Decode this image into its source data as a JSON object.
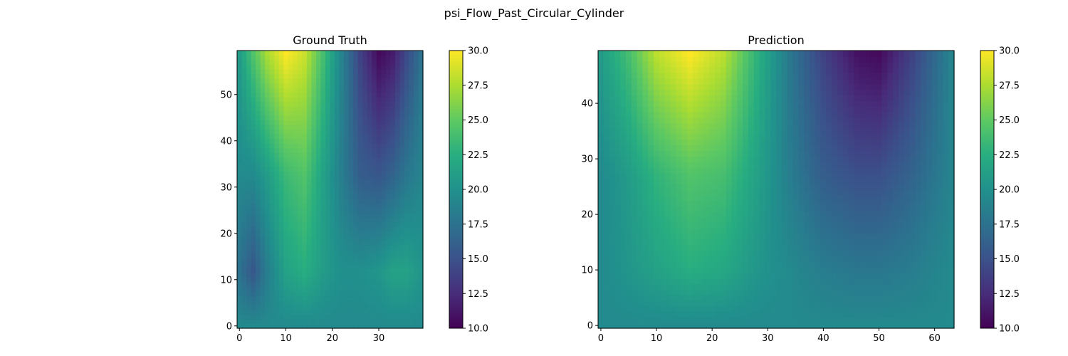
{
  "figure": {
    "title": "psi_Flow_Past_Circular_Cylinder"
  },
  "chart_data": [
    {
      "type": "heatmap",
      "title": "Ground Truth",
      "colormap": "viridis",
      "grid": false,
      "nx": 40,
      "ny": 60,
      "xlim": [
        -0.5,
        39.5
      ],
      "ylim": [
        -0.5,
        59.5
      ],
      "xticks": [
        0,
        10,
        20,
        30
      ],
      "yticks": [
        0,
        10,
        20,
        30,
        40,
        50
      ],
      "colorbar": {
        "min": 10.0,
        "max": 30.0,
        "ticks": [
          "10.0",
          "12.5",
          "15.0",
          "17.5",
          "20.0",
          "22.5",
          "25.0",
          "27.5",
          "30.0"
        ]
      },
      "profile_x": [
        0,
        3,
        6,
        10,
        14,
        18,
        22,
        26,
        30,
        33,
        36,
        39
      ],
      "top_row_values": [
        21,
        24.5,
        27.5,
        30,
        28.5,
        24,
        19,
        14,
        10.5,
        11.5,
        14.5,
        17.5
      ],
      "mid_row_values": [
        19.5,
        19.5,
        21,
        23.5,
        24.5,
        21.5,
        18.5,
        16,
        15.5,
        16.5,
        18,
        19
      ],
      "low_row_values": [
        17.5,
        15.5,
        18.5,
        21.5,
        22.5,
        21,
        20,
        20,
        20.5,
        21.5,
        21.5,
        20.5
      ],
      "bottom_row_values": [
        19.5,
        19.5,
        19.5,
        19.5,
        19.5,
        19.5,
        19.5,
        19.5,
        19.5,
        19.5,
        19.5,
        19.5
      ]
    },
    {
      "type": "heatmap",
      "title": "Prediction",
      "colormap": "viridis",
      "grid": false,
      "nx": 64,
      "ny": 50,
      "xlim": [
        -0.5,
        63.5
      ],
      "ylim": [
        -0.5,
        49.5
      ],
      "xticks": [
        0,
        10,
        20,
        30,
        40,
        50,
        60
      ],
      "yticks": [
        0,
        10,
        20,
        30,
        40
      ],
      "colorbar": {
        "min": 10.0,
        "max": 30.0,
        "ticks": [
          "10.0",
          "12.5",
          "15.0",
          "17.5",
          "20.0",
          "22.5",
          "25.0",
          "27.5",
          "30.0"
        ]
      },
      "profile_x": [
        0,
        5,
        10,
        16,
        22,
        28,
        34,
        40,
        46,
        50,
        56,
        63
      ],
      "top_row_values": [
        21,
        24,
        28,
        30,
        28,
        23,
        18,
        14,
        11,
        10.5,
        14,
        19
      ],
      "mid_row_values": [
        19.5,
        21,
        23,
        24.5,
        24,
        21.5,
        18.5,
        16,
        15,
        15,
        16.5,
        19
      ],
      "low_row_values": [
        19.5,
        20.5,
        21.5,
        22.5,
        22,
        20.5,
        19.5,
        18.5,
        18,
        18,
        18.5,
        19.5
      ],
      "bottom_row_values": [
        19.5,
        19.5,
        19.5,
        19.5,
        19.5,
        19.5,
        19.5,
        19.5,
        19.5,
        19.5,
        19.5,
        19.5
      ]
    }
  ]
}
